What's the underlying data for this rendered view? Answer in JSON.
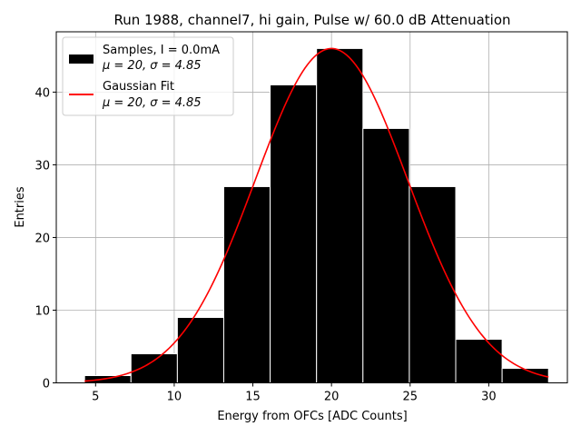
{
  "chart_data": {
    "type": "bar",
    "title": "Run 1988, channel7, hi gain, Pulse w/ 60.0 dB Attenuation",
    "xlabel": "Energy from OFCs [ADC Counts]",
    "ylabel": "Entries",
    "xlim": [
      2.5,
      35.0
    ],
    "ylim": [
      0,
      48.3
    ],
    "xticks": [
      5,
      10,
      15,
      20,
      25,
      30
    ],
    "yticks": [
      0,
      10,
      20,
      30,
      40
    ],
    "grid": true,
    "bins": [
      {
        "left": 4.3,
        "right": 7.25,
        "count": 1
      },
      {
        "left": 7.25,
        "right": 10.2,
        "count": 4
      },
      {
        "left": 10.2,
        "right": 13.15,
        "count": 9
      },
      {
        "left": 13.15,
        "right": 16.1,
        "count": 27
      },
      {
        "left": 16.1,
        "right": 19.05,
        "count": 41
      },
      {
        "left": 19.05,
        "right": 22.0,
        "count": 46
      },
      {
        "left": 22.0,
        "right": 24.95,
        "count": 35
      },
      {
        "left": 24.95,
        "right": 27.9,
        "count": 27
      },
      {
        "left": 27.9,
        "right": 30.85,
        "count": 6
      },
      {
        "left": 30.85,
        "right": 33.8,
        "count": 2
      }
    ],
    "fit": {
      "type": "gaussian",
      "mu": 20.0,
      "sigma": 4.85,
      "amplitude": 46.0,
      "x_range": [
        4.3,
        33.8
      ]
    },
    "colors": {
      "bars": "#000000",
      "bar_edge": "#ffffff",
      "fit": "#ff0000",
      "grid": "#b0b0b0"
    },
    "legend": {
      "location": "top-left",
      "entries": [
        {
          "kind": "bar",
          "line1": "Samples, I = 0.0mA",
          "line2": "μ = 20, σ = 4.85"
        },
        {
          "kind": "line",
          "line1": "Gaussian Fit",
          "line2": "μ = 20, σ = 4.85"
        }
      ]
    }
  }
}
